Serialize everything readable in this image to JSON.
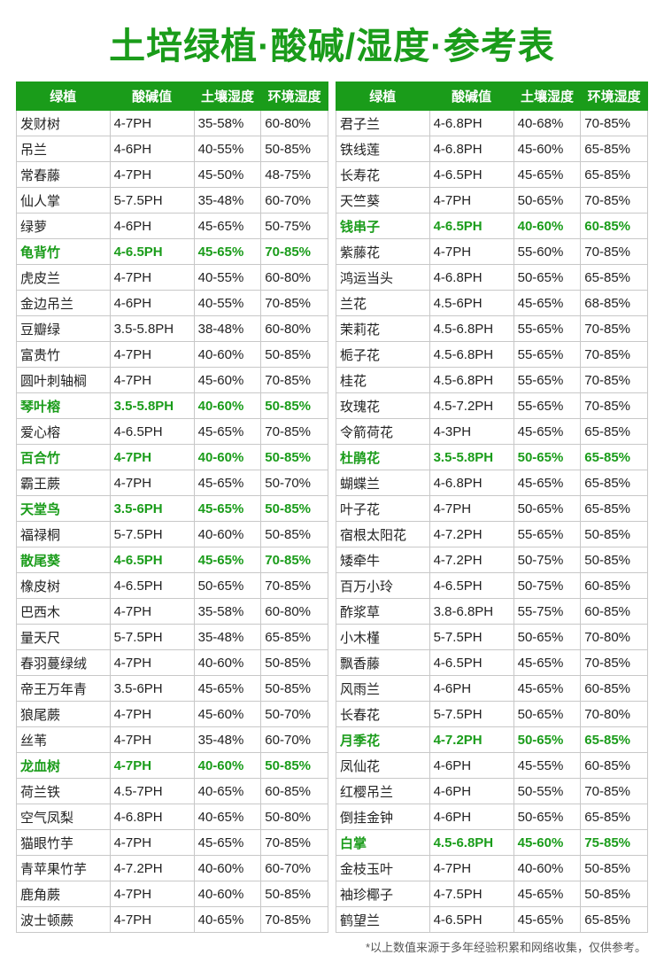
{
  "title": "土培绿植·酸碱/湿度·参考表",
  "headers": [
    "绿植",
    "酸碱值",
    "土壤湿度",
    "环境湿度"
  ],
  "footnote": "*以上数值来源于多年经验积累和网络收集，仅供参考。",
  "colors": {
    "green": "#1a9c1a",
    "text": "#222222",
    "border": "#c8c8c8",
    "bg": "#ffffff"
  },
  "left": [
    {
      "n": "发财树",
      "ph": "4-7PH",
      "s": "35-58%",
      "e": "60-80%",
      "hl": false
    },
    {
      "n": "吊兰",
      "ph": "4-6PH",
      "s": "40-55%",
      "e": "50-85%",
      "hl": false
    },
    {
      "n": "常春藤",
      "ph": "4-7PH",
      "s": "45-50%",
      "e": "48-75%",
      "hl": false
    },
    {
      "n": "仙人掌",
      "ph": "5-7.5PH",
      "s": "35-48%",
      "e": "60-70%",
      "hl": false
    },
    {
      "n": "绿萝",
      "ph": "4-6PH",
      "s": "45-65%",
      "e": "50-75%",
      "hl": false
    },
    {
      "n": "龟背竹",
      "ph": "4-6.5PH",
      "s": "45-65%",
      "e": "70-85%",
      "hl": true
    },
    {
      "n": "虎皮兰",
      "ph": "4-7PH",
      "s": "40-55%",
      "e": "60-80%",
      "hl": false
    },
    {
      "n": "金边吊兰",
      "ph": "4-6PH",
      "s": "40-55%",
      "e": "70-85%",
      "hl": false
    },
    {
      "n": "豆瓣绿",
      "ph": "3.5-5.8PH",
      "s": "38-48%",
      "e": "60-80%",
      "hl": false
    },
    {
      "n": "富贵竹",
      "ph": "4-7PH",
      "s": "40-60%",
      "e": "50-85%",
      "hl": false
    },
    {
      "n": "圆叶刺轴榈",
      "ph": "4-7PH",
      "s": "45-60%",
      "e": "70-85%",
      "hl": false
    },
    {
      "n": "琴叶榕",
      "ph": "3.5-5.8PH",
      "s": "40-60%",
      "e": "50-85%",
      "hl": true
    },
    {
      "n": "爱心榕",
      "ph": "4-6.5PH",
      "s": "45-65%",
      "e": "70-85%",
      "hl": false
    },
    {
      "n": "百合竹",
      "ph": "4-7PH",
      "s": "40-60%",
      "e": "50-85%",
      "hl": true
    },
    {
      "n": "霸王蕨",
      "ph": "4-7PH",
      "s": "45-65%",
      "e": "50-70%",
      "hl": false
    },
    {
      "n": "天堂鸟",
      "ph": "3.5-6PH",
      "s": "45-65%",
      "e": "50-85%",
      "hl": true
    },
    {
      "n": "福禄桐",
      "ph": "5-7.5PH",
      "s": "40-60%",
      "e": "50-85%",
      "hl": false
    },
    {
      "n": "散尾葵",
      "ph": "4-6.5PH",
      "s": "45-65%",
      "e": "70-85%",
      "hl": true
    },
    {
      "n": "橡皮树",
      "ph": "4-6.5PH",
      "s": "50-65%",
      "e": "70-85%",
      "hl": false
    },
    {
      "n": "巴西木",
      "ph": "4-7PH",
      "s": "35-58%",
      "e": "60-80%",
      "hl": false
    },
    {
      "n": "量天尺",
      "ph": "5-7.5PH",
      "s": "35-48%",
      "e": "65-85%",
      "hl": false
    },
    {
      "n": "春羽蔓绿绒",
      "ph": "4-7PH",
      "s": "40-60%",
      "e": "50-85%",
      "hl": false
    },
    {
      "n": "帝王万年青",
      "ph": "3.5-6PH",
      "s": "45-65%",
      "e": "50-85%",
      "hl": false
    },
    {
      "n": "狼尾蕨",
      "ph": "4-7PH",
      "s": "45-60%",
      "e": "50-70%",
      "hl": false
    },
    {
      "n": "丝苇",
      "ph": "4-7PH",
      "s": "35-48%",
      "e": "60-70%",
      "hl": false
    },
    {
      "n": "龙血树",
      "ph": "4-7PH",
      "s": "40-60%",
      "e": "50-85%",
      "hl": true
    },
    {
      "n": "荷兰铁",
      "ph": "4.5-7PH",
      "s": "40-65%",
      "e": "60-85%",
      "hl": false
    },
    {
      "n": "空气凤梨",
      "ph": "4-6.8PH",
      "s": "40-65%",
      "e": "50-80%",
      "hl": false
    },
    {
      "n": "猫眼竹芋",
      "ph": "4-7PH",
      "s": "45-65%",
      "e": "70-85%",
      "hl": false
    },
    {
      "n": "青苹果竹芋",
      "ph": "4-7.2PH",
      "s": "40-60%",
      "e": "60-70%",
      "hl": false
    },
    {
      "n": "鹿角蕨",
      "ph": "4-7PH",
      "s": "40-60%",
      "e": "50-85%",
      "hl": false
    },
    {
      "n": "波士顿蕨",
      "ph": "4-7PH",
      "s": "40-65%",
      "e": "70-85%",
      "hl": false
    }
  ],
  "right": [
    {
      "n": "君子兰",
      "ph": "4-6.8PH",
      "s": "40-68%",
      "e": "70-85%",
      "hl": false
    },
    {
      "n": "铁线莲",
      "ph": "4-6.8PH",
      "s": "45-60%",
      "e": "65-85%",
      "hl": false
    },
    {
      "n": "长寿花",
      "ph": "4-6.5PH",
      "s": "45-65%",
      "e": "65-85%",
      "hl": false
    },
    {
      "n": "天竺葵",
      "ph": "4-7PH",
      "s": "50-65%",
      "e": "70-85%",
      "hl": false
    },
    {
      "n": "钱串子",
      "ph": "4-6.5PH",
      "s": "40-60%",
      "e": "60-85%",
      "hl": true
    },
    {
      "n": "紫藤花",
      "ph": "4-7PH",
      "s": "55-60%",
      "e": "70-85%",
      "hl": false
    },
    {
      "n": "鸿运当头",
      "ph": "4-6.8PH",
      "s": "50-65%",
      "e": "65-85%",
      "hl": false
    },
    {
      "n": "兰花",
      "ph": "4.5-6PH",
      "s": "45-65%",
      "e": "68-85%",
      "hl": false
    },
    {
      "n": "茉莉花",
      "ph": "4.5-6.8PH",
      "s": "55-65%",
      "e": "70-85%",
      "hl": false
    },
    {
      "n": "栀子花",
      "ph": "4.5-6.8PH",
      "s": "55-65%",
      "e": "70-85%",
      "hl": false
    },
    {
      "n": "桂花",
      "ph": "4.5-6.8PH",
      "s": "55-65%",
      "e": "70-85%",
      "hl": false
    },
    {
      "n": "玫瑰花",
      "ph": "4.5-7.2PH",
      "s": "55-65%",
      "e": "70-85%",
      "hl": false
    },
    {
      "n": "令箭荷花",
      "ph": "4-3PH",
      "s": "45-65%",
      "e": "65-85%",
      "hl": false
    },
    {
      "n": "杜鹃花",
      "ph": "3.5-5.8PH",
      "s": "50-65%",
      "e": "65-85%",
      "hl": true
    },
    {
      "n": "蝴蝶兰",
      "ph": "4-6.8PH",
      "s": "45-65%",
      "e": "65-85%",
      "hl": false
    },
    {
      "n": "叶子花",
      "ph": "4-7PH",
      "s": "50-65%",
      "e": "65-85%",
      "hl": false
    },
    {
      "n": "宿根太阳花",
      "ph": "4-7.2PH",
      "s": "55-65%",
      "e": "50-85%",
      "hl": false
    },
    {
      "n": "矮牵牛",
      "ph": "4-7.2PH",
      "s": "50-75%",
      "e": "50-85%",
      "hl": false
    },
    {
      "n": "百万小玲",
      "ph": "4-6.5PH",
      "s": "50-75%",
      "e": "60-85%",
      "hl": false
    },
    {
      "n": "酢浆草",
      "ph": "3.8-6.8PH",
      "s": "55-75%",
      "e": "60-85%",
      "hl": false
    },
    {
      "n": "小木槿",
      "ph": "5-7.5PH",
      "s": "50-65%",
      "e": "70-80%",
      "hl": false
    },
    {
      "n": "飘香藤",
      "ph": "4-6.5PH",
      "s": "45-65%",
      "e": "70-85%",
      "hl": false
    },
    {
      "n": "风雨兰",
      "ph": "4-6PH",
      "s": "45-65%",
      "e": "60-85%",
      "hl": false
    },
    {
      "n": "长春花",
      "ph": "5-7.5PH",
      "s": "50-65%",
      "e": "70-80%",
      "hl": false
    },
    {
      "n": "月季花",
      "ph": "4-7.2PH",
      "s": "50-65%",
      "e": "65-85%",
      "hl": true
    },
    {
      "n": "凤仙花",
      "ph": "4-6PH",
      "s": "45-55%",
      "e": "60-85%",
      "hl": false
    },
    {
      "n": "红樱吊兰",
      "ph": "4-6PH",
      "s": "50-55%",
      "e": "70-85%",
      "hl": false
    },
    {
      "n": "倒挂金钟",
      "ph": "4-6PH",
      "s": "50-65%",
      "e": "65-85%",
      "hl": false
    },
    {
      "n": "白掌",
      "ph": "4.5-6.8PH",
      "s": "45-60%",
      "e": "75-85%",
      "hl": true
    },
    {
      "n": "金枝玉叶",
      "ph": "4-7PH",
      "s": "40-60%",
      "e": "50-85%",
      "hl": false
    },
    {
      "n": "袖珍椰子",
      "ph": "4-7.5PH",
      "s": "45-65%",
      "e": "50-85%",
      "hl": false
    },
    {
      "n": "鹤望兰",
      "ph": "4-6.5PH",
      "s": "45-65%",
      "e": "65-85%",
      "hl": false
    }
  ]
}
